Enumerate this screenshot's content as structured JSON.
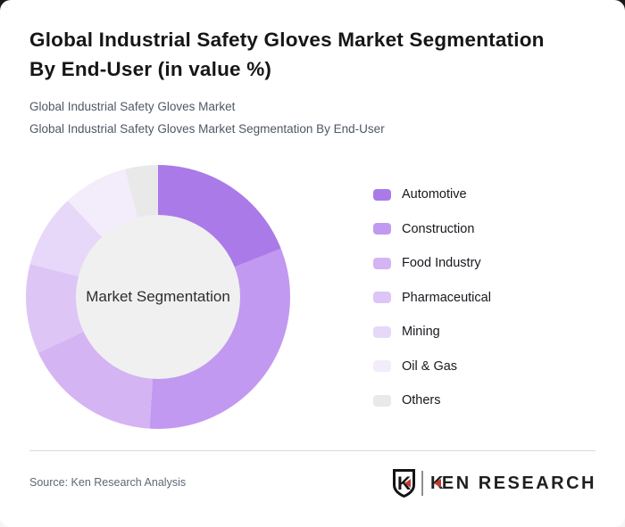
{
  "header": {
    "title_line1": "Global Industrial Safety Gloves Market Segmentation",
    "title_line2": "By End-User (in value %)",
    "subtitle_line1": "Global Industrial Safety Gloves Market",
    "subtitle_line2": "Global Industrial Safety Gloves Market Segmentation By End-User"
  },
  "chart_data": {
    "type": "pie",
    "variant": "donut",
    "title": "Global Industrial Safety Gloves Market Segmentation By End-User (in value %)",
    "center_label": "Market Segmentation",
    "unit": "value %",
    "start_angle_deg": 0,
    "direction": "clockwise",
    "legend_position": "right",
    "values_labeled_on_chart": false,
    "hole_color": "#f0f0f0",
    "segments": [
      {
        "label": "Automotive",
        "value_pct": 19,
        "color": "#ab7ae9"
      },
      {
        "label": "Construction",
        "value_pct": 32,
        "color": "#c299f0"
      },
      {
        "label": "Food Industry",
        "value_pct": 17,
        "color": "#d4b4f3"
      },
      {
        "label": "Pharmaceutical",
        "value_pct": 11,
        "color": "#ddc6f6"
      },
      {
        "label": "Mining",
        "value_pct": 9,
        "color": "#e7d8fa"
      },
      {
        "label": "Oil & Gas",
        "value_pct": 8,
        "color": "#f2ecfb"
      },
      {
        "label": "Others",
        "value_pct": 4,
        "color": "#e9e9e9"
      }
    ]
  },
  "footer": {
    "source": "Source: Ken Research Analysis",
    "logo": {
      "shield_letter": "K",
      "k": "K",
      "rest": "EN RESEARCH"
    }
  },
  "colors": {
    "accent": "#c23b30",
    "title_text": "#161616",
    "subtitle_text": "#4e5866"
  }
}
